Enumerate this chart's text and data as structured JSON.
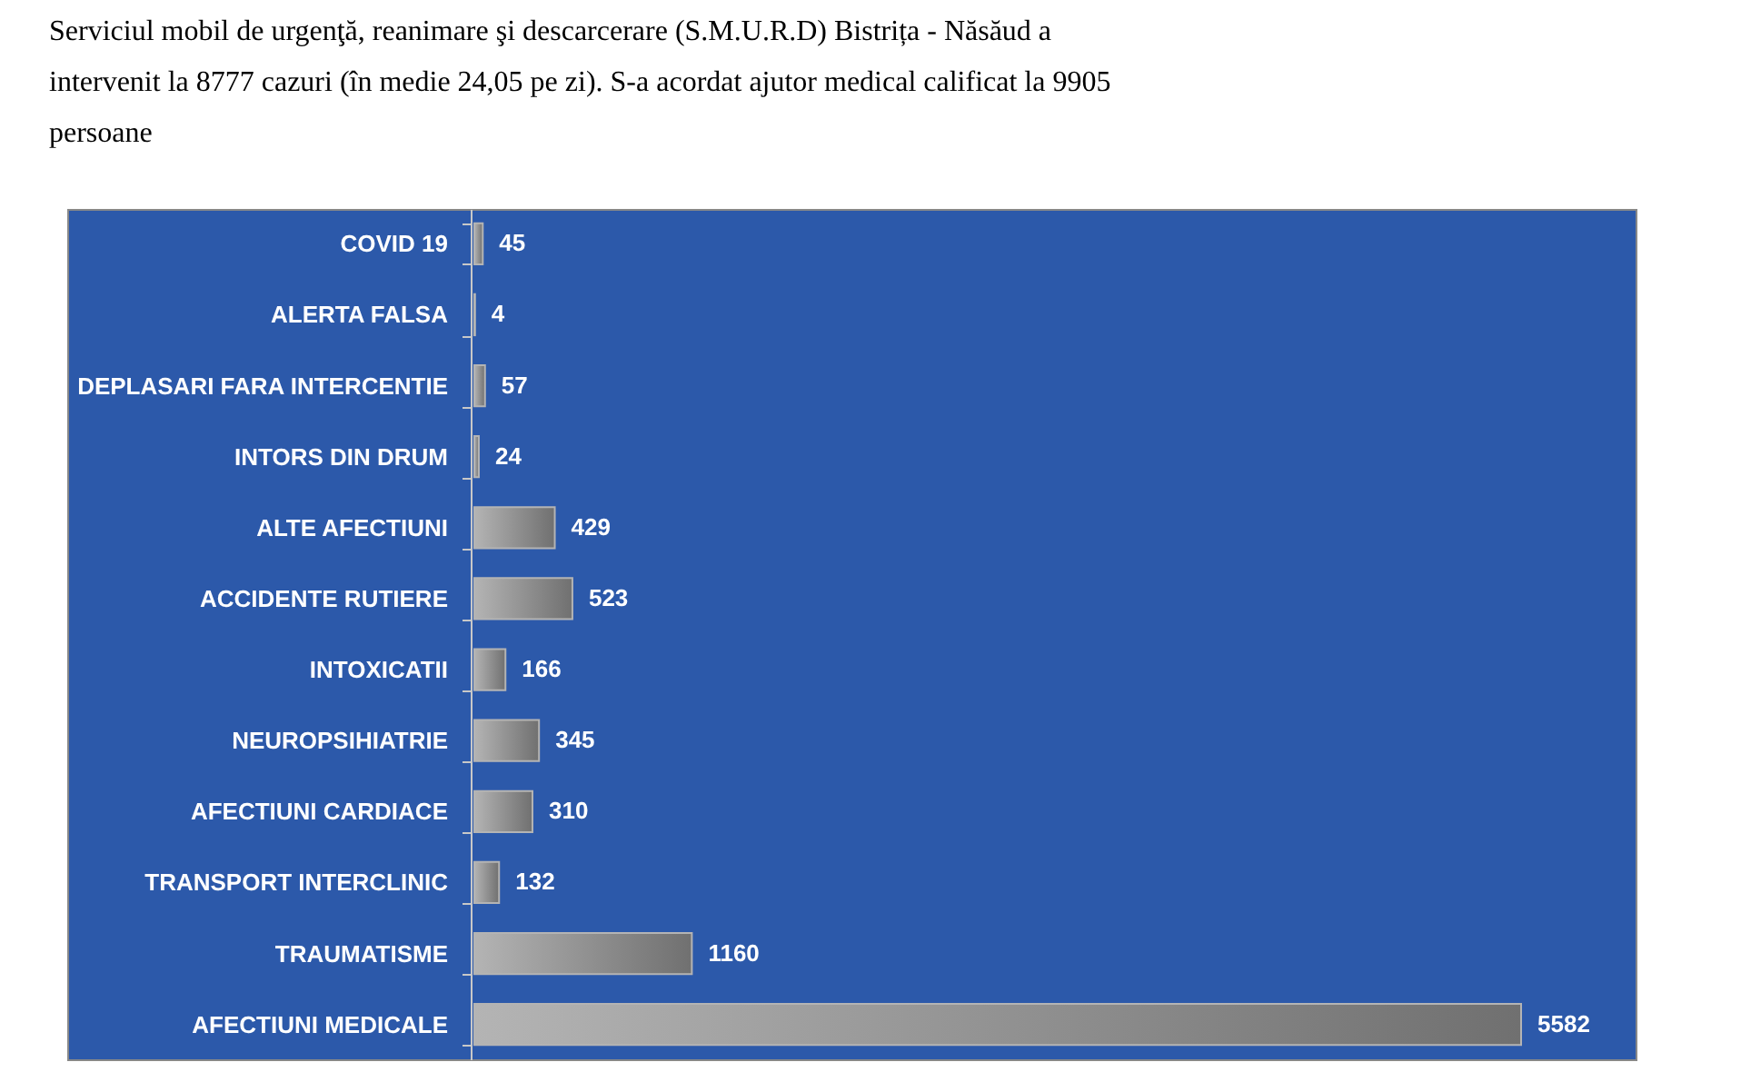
{
  "chart_data": {
    "type": "bar",
    "orientation": "horizontal",
    "title": "Serviciul mobil de urgenţă, reanimare şi descarcerare (S.M.U.R.D) Bistrița - Năsăud a intervenit la 8777 cazuri (în medie 24,05 pe zi). S-a acordat ajutor medical calificat la 9905 persoane",
    "categories": [
      "COVID 19",
      "ALERTA FALSA",
      "DEPLASARI FARA INTERCENTIE",
      "INTORS DIN DRUM",
      "ALTE AFECTIUNI",
      "ACCIDENTE RUTIERE",
      "INTOXICATII",
      "NEUROPSIHIATRIE",
      "AFECTIUNI CARDIACE",
      "TRANSPORT INTERCLINIC",
      "TRAUMATISME",
      "AFECTIUNI MEDICALE"
    ],
    "values": [
      45,
      4,
      57,
      24,
      429,
      523,
      166,
      345,
      310,
      132,
      1160,
      5582
    ],
    "color": "#b4b4b4",
    "data_labels": true,
    "grid": false
  }
}
